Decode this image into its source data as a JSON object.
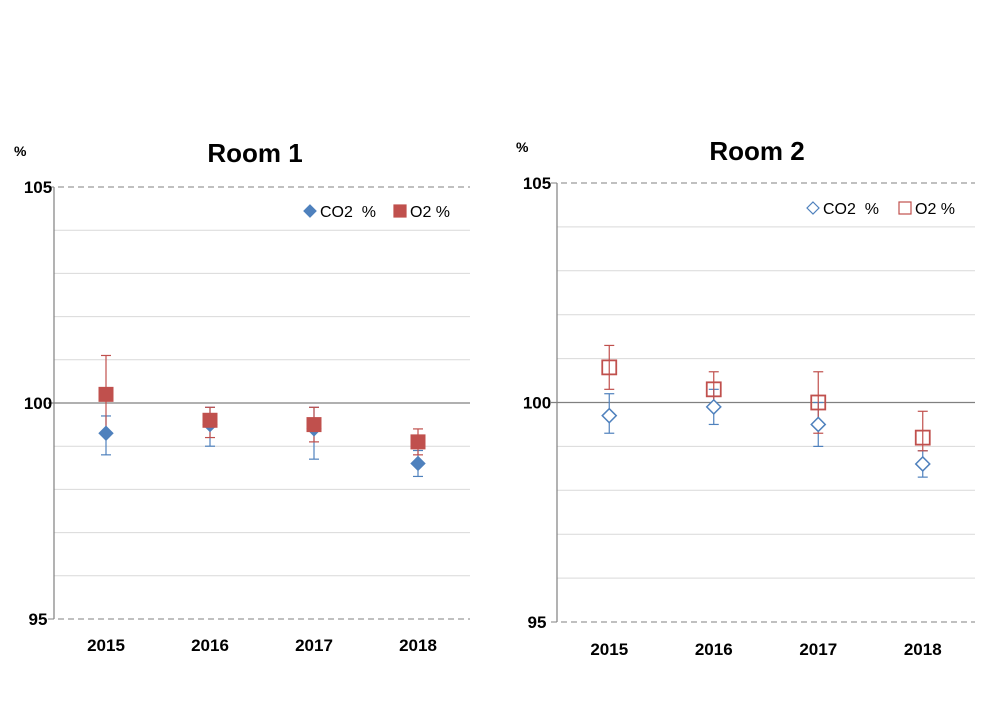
{
  "chart_data": [
    {
      "type": "scatter",
      "title": "Room 1",
      "ylabel": "%",
      "xlabel": "",
      "categories": [
        "2015",
        "2016",
        "2017",
        "2018"
      ],
      "ylim": [
        95,
        105
      ],
      "yticks": [
        "95",
        "100",
        "105"
      ],
      "grid": true,
      "legend": "top-right",
      "marker_fill": "filled",
      "series": [
        {
          "name": "CO2  %",
          "color": "#4F81BD",
          "marker": "diamond",
          "values": [
            99.3,
            99.5,
            99.4,
            98.6
          ],
          "error_low": [
            98.8,
            99.0,
            98.7,
            98.3
          ],
          "error_high": [
            99.7,
            99.9,
            99.9,
            98.9
          ]
        },
        {
          "name": "O2 %",
          "color": "#C0504D",
          "marker": "square",
          "values": [
            100.2,
            99.6,
            99.5,
            99.1
          ],
          "error_low": [
            99.3,
            99.2,
            99.1,
            98.8
          ],
          "error_high": [
            101.1,
            99.9,
            99.9,
            99.4
          ]
        }
      ]
    },
    {
      "type": "scatter",
      "title": "Room 2",
      "ylabel": "%",
      "xlabel": "",
      "categories": [
        "2015",
        "2016",
        "2017",
        "2018"
      ],
      "ylim": [
        95,
        105
      ],
      "yticks": [
        "95",
        "100",
        "105"
      ],
      "grid": true,
      "legend": "top-right",
      "marker_fill": "hollow",
      "series": [
        {
          "name": "CO2  %",
          "color": "#4F81BD",
          "marker": "diamond",
          "values": [
            99.7,
            99.9,
            99.5,
            98.6
          ],
          "error_low": [
            99.3,
            99.5,
            99.0,
            98.3
          ],
          "error_high": [
            100.2,
            100.3,
            100.0,
            98.9
          ]
        },
        {
          "name": "O2 %",
          "color": "#C0504D",
          "marker": "square",
          "values": [
            100.8,
            100.3,
            100.0,
            99.2
          ],
          "error_low": [
            100.3,
            99.9,
            99.3,
            98.9
          ],
          "error_high": [
            101.3,
            100.7,
            100.7,
            99.8
          ]
        }
      ]
    }
  ]
}
